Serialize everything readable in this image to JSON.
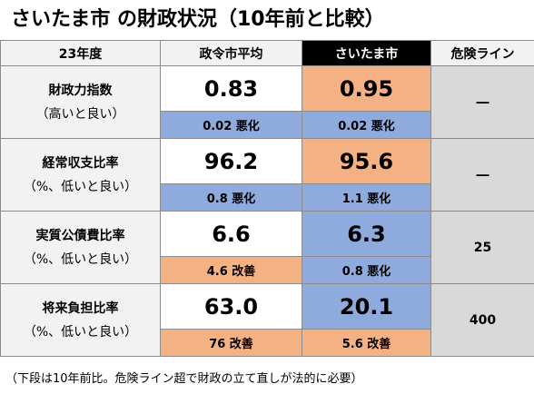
{
  "title": "さいたま市 の財政状況（10年前と比較）",
  "headers": {
    "year": "23年度",
    "city_avg": "政令市平均",
    "saitama": "さいたま市",
    "danger": "危険ライン"
  },
  "rows": [
    {
      "label1": "財政力指数",
      "label2": "（高いと良い）",
      "avg": "0.83",
      "saitama": "0.95",
      "avg_change": "0.02 悪化",
      "saitama_change": "0.02 悪化",
      "danger": "―"
    },
    {
      "label1": "経常収支比率",
      "label2": "（%、低いと良い）",
      "avg": "96.2",
      "saitama": "95.6",
      "avg_change": "0.8 悪化",
      "saitama_change": "1.1 悪化",
      "danger": "―"
    },
    {
      "label1": "実質公債費比率",
      "label2": "（%、低いと良い）",
      "avg": "6.6",
      "saitama": "6.3",
      "avg_change": "4.6 改善",
      "saitama_change": "0.8 悪化",
      "danger": "25"
    },
    {
      "label1": "将来負担比率",
      "label2": "（%、低いと良い）",
      "avg": "63.0",
      "saitama": "20.1",
      "avg_change": "76 改善",
      "saitama_change": "5.6 改善",
      "danger": "400"
    }
  ],
  "note": "（下段は10年前比。危険ライン超で財政の立て直しが法的に必要）",
  "colors": {
    "orange": "#f4b183",
    "blue": "#8faadc",
    "gray": "#d9d9d9",
    "header_black": "#000000"
  }
}
